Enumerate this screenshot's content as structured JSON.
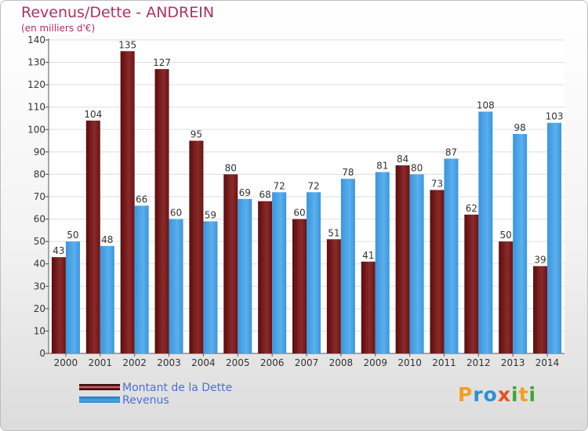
{
  "header": {
    "title": "Revenus/Dette - ANDREIN",
    "subtitle": "(en milliers d'€)"
  },
  "chart_data": {
    "type": "bar",
    "title": "Revenus/Dette - ANDREIN",
    "subtitle": "(en milliers d'€)",
    "categories": [
      "2000",
      "2001",
      "2002",
      "2003",
      "2004",
      "2005",
      "2006",
      "2007",
      "2008",
      "2009",
      "2010",
      "2011",
      "2012",
      "2013",
      "2014"
    ],
    "series": [
      {
        "name": "Montant de la Dette",
        "values": [
          43,
          104,
          135,
          127,
          95,
          80,
          68,
          60,
          51,
          41,
          84,
          73,
          62,
          50,
          39
        ],
        "color": "#7a1a1a"
      },
      {
        "name": "Revenus",
        "values": [
          50,
          48,
          66,
          60,
          59,
          69,
          72,
          72,
          78,
          81,
          80,
          87,
          108,
          98,
          103
        ],
        "color": "#4aa3e6"
      }
    ],
    "ylim": [
      0,
      140
    ],
    "yticks": [
      0,
      10,
      20,
      30,
      40,
      50,
      60,
      70,
      80,
      90,
      100,
      110,
      120,
      130,
      140
    ],
    "grid": true,
    "legend_position": "bottom-left"
  },
  "legend": {
    "items": [
      {
        "label": "Montant de la Dette",
        "color": "#7a1a1a"
      },
      {
        "label": "Revenus",
        "color": "#4aa3e6"
      }
    ]
  },
  "logo": {
    "letters": [
      "P",
      "r",
      "o",
      "x",
      "i",
      "t",
      "i"
    ],
    "colors": [
      "#f0a020",
      "#2a8fd8",
      "#2a8fd8",
      "#e8501e",
      "#3aa83a",
      "#f0a020",
      "#3aa83a"
    ]
  }
}
